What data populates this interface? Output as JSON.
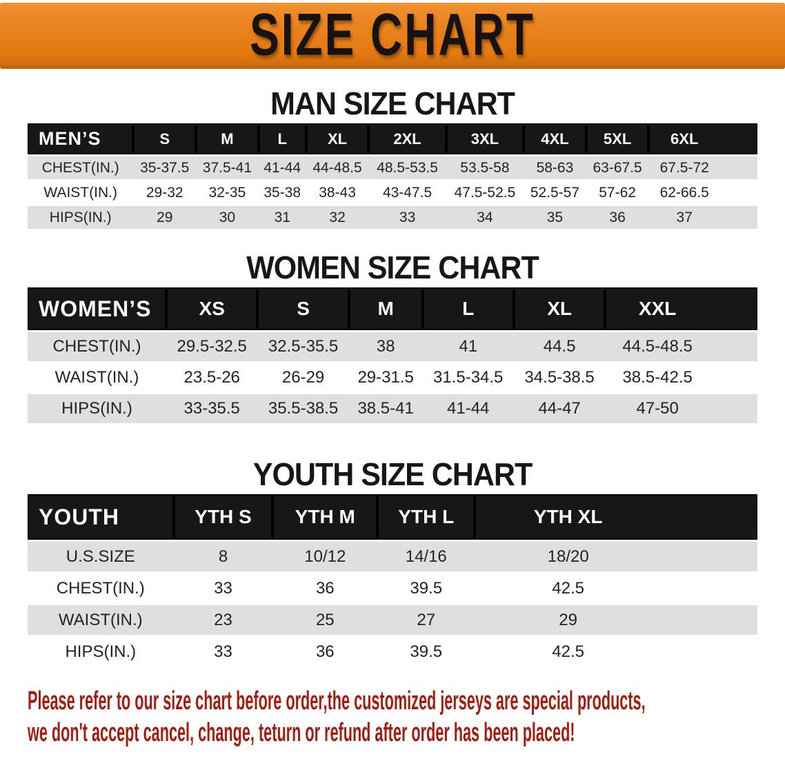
{
  "banner": {
    "title": "SIZE CHART"
  },
  "sections": [
    {
      "title": "MAN SIZE CHART",
      "table": {
        "label": "MEN’S",
        "sizes": [
          "S",
          "M",
          "L",
          "XL",
          "2XL",
          "3XL",
          "4XL",
          "5XL",
          "6XL"
        ],
        "rows": [
          {
            "label": "CHEST(IN.)",
            "values": [
              "35-37.5",
              "37.5-41",
              "41-44",
              "44-48.5",
              "48.5-53.5",
              "53.5-58",
              "58-63",
              "63-67.5",
              "67.5-72"
            ]
          },
          {
            "label": "WAIST(IN.)",
            "values": [
              "29-32",
              "32-35",
              "35-38",
              "38-43",
              "43-47.5",
              "47.5-52.5",
              "52.5-57",
              "57-62",
              "62-66.5"
            ]
          },
          {
            "label": "HIPS(IN.)",
            "values": [
              "29",
              "30",
              "31",
              "32",
              "33",
              "34",
              "35",
              "36",
              "37"
            ]
          }
        ]
      }
    },
    {
      "title": "WOMEN SIZE CHART",
      "table": {
        "label": "WOMEN’S",
        "sizes": [
          "XS",
          "S",
          "M",
          "L",
          "XL",
          "XXL"
        ],
        "rows": [
          {
            "label": "CHEST(IN.)",
            "values": [
              "29.5-32.5",
              "32.5-35.5",
              "38",
              "41",
              "44.5",
              "44.5-48.5"
            ]
          },
          {
            "label": "WAIST(IN.)",
            "values": [
              "23.5-26",
              "26-29",
              "29-31.5",
              "31.5-34.5",
              "34.5-38.5",
              "38.5-42.5"
            ]
          },
          {
            "label": "HIPS(IN.)",
            "values": [
              "33-35.5",
              "35.5-38.5",
              "38.5-41",
              "41-44",
              "44-47",
              "47-50"
            ]
          }
        ]
      }
    },
    {
      "title": "YOUTH SIZE CHART",
      "table": {
        "label": "YOUTH",
        "sizes": [
          "YTH S",
          "YTH M",
          "YTH L",
          "YTH XL"
        ],
        "rows": [
          {
            "label": "U.S.SIZE",
            "values": [
              "8",
              "10/12",
              "14/16",
              "18/20"
            ]
          },
          {
            "label": "CHEST(IN.)",
            "values": [
              "33",
              "36",
              "39.5",
              "42.5"
            ]
          },
          {
            "label": "WAIST(IN.)",
            "values": [
              "23",
              "25",
              "27",
              "29"
            ]
          },
          {
            "label": "HIPS(IN.)",
            "values": [
              "33",
              "36",
              "39.5",
              "42.5"
            ]
          }
        ]
      }
    }
  ],
  "footer": {
    "line1": "Please refer to our size chart before order,the customized jerseys are special products,",
    "line2": "we don't accept cancel, change, teturn or refund after order has been placed!"
  },
  "colors": {
    "banner_orange": "#E8811B",
    "banner_orange_light": "#F09030",
    "band_black": "#171717",
    "row_gray": "#DFDFDF",
    "footer_red": "#A01D12"
  }
}
